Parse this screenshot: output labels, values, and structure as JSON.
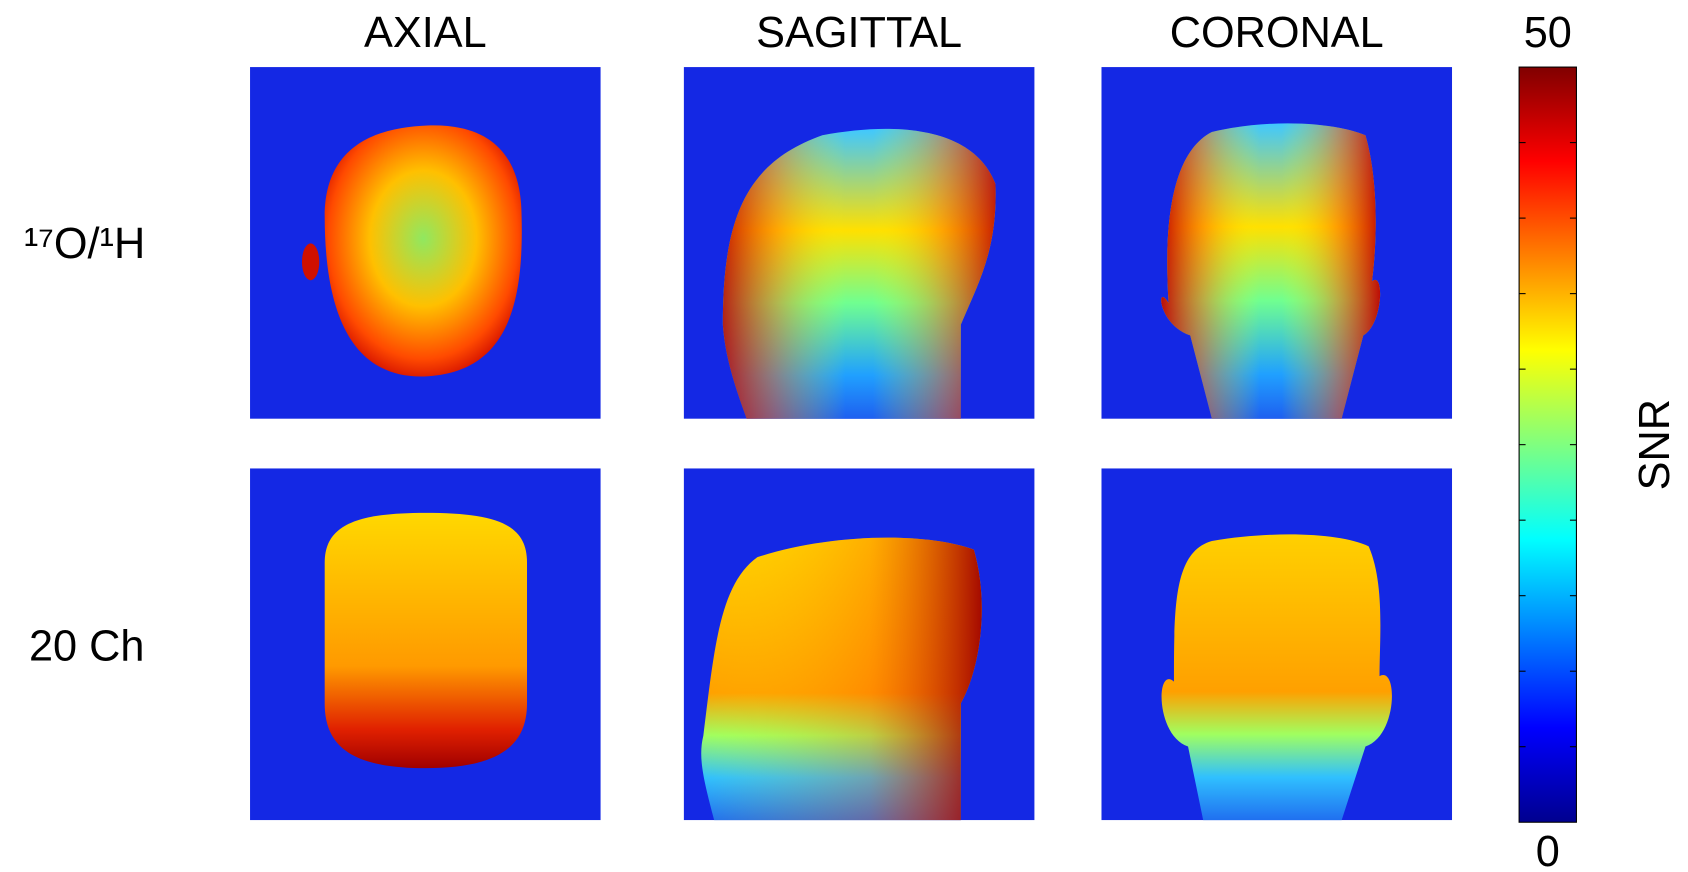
{
  "chart_data": {
    "type": "heatmap",
    "columns": [
      "AXIAL",
      "SAGITTAL",
      "CORONAL"
    ],
    "rows": [
      "¹⁷O/¹H",
      "20 Ch"
    ],
    "colorbar": {
      "label": "SNR",
      "colormap": "jet",
      "clim": [
        0,
        50
      ],
      "cticks": [
        0,
        50
      ],
      "cminorticks": [
        5,
        10,
        15,
        20,
        25,
        30,
        35,
        40,
        45
      ]
    }
  }
}
